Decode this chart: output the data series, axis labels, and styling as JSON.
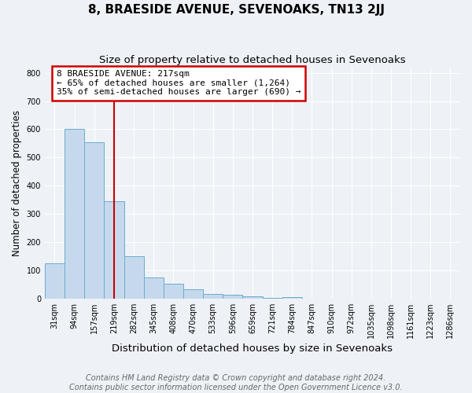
{
  "title": "8, BRAESIDE AVENUE, SEVENOAKS, TN13 2JJ",
  "subtitle": "Size of property relative to detached houses in Sevenoaks",
  "xlabel": "Distribution of detached houses by size in Sevenoaks",
  "ylabel": "Number of detached properties",
  "categories": [
    "31sqm",
    "94sqm",
    "157sqm",
    "219sqm",
    "282sqm",
    "345sqm",
    "408sqm",
    "470sqm",
    "533sqm",
    "596sqm",
    "659sqm",
    "721sqm",
    "784sqm",
    "847sqm",
    "910sqm",
    "972sqm",
    "1035sqm",
    "1098sqm",
    "1161sqm",
    "1223sqm",
    "1286sqm"
  ],
  "values": [
    125,
    600,
    555,
    345,
    150,
    75,
    52,
    32,
    15,
    12,
    8,
    2,
    6,
    0,
    0,
    0,
    0,
    0,
    0,
    0,
    0
  ],
  "bar_color": "#c6d9ec",
  "bar_edge_color": "#6aabcf",
  "red_line_index": 3,
  "red_line_color": "#cc0000",
  "annotation_line1": "8 BRAESIDE AVENUE: 217sqm",
  "annotation_line2": "← 65% of detached houses are smaller (1,264)",
  "annotation_line3": "35% of semi-detached houses are larger (690) →",
  "annotation_box_color": "#ffffff",
  "annotation_box_edge_color": "#cc0000",
  "ylim": [
    0,
    820
  ],
  "yticks": [
    0,
    100,
    200,
    300,
    400,
    500,
    600,
    700,
    800
  ],
  "footer1": "Contains HM Land Registry data © Crown copyright and database right 2024.",
  "footer2": "Contains public sector information licensed under the Open Government Licence v3.0.",
  "bg_color": "#eef2f7",
  "grid_color": "#ffffff",
  "title_fontsize": 11,
  "subtitle_fontsize": 9.5,
  "tick_fontsize": 7,
  "ylabel_fontsize": 8.5,
  "xlabel_fontsize": 9.5,
  "footer_fontsize": 7,
  "ann_fontsize": 8
}
